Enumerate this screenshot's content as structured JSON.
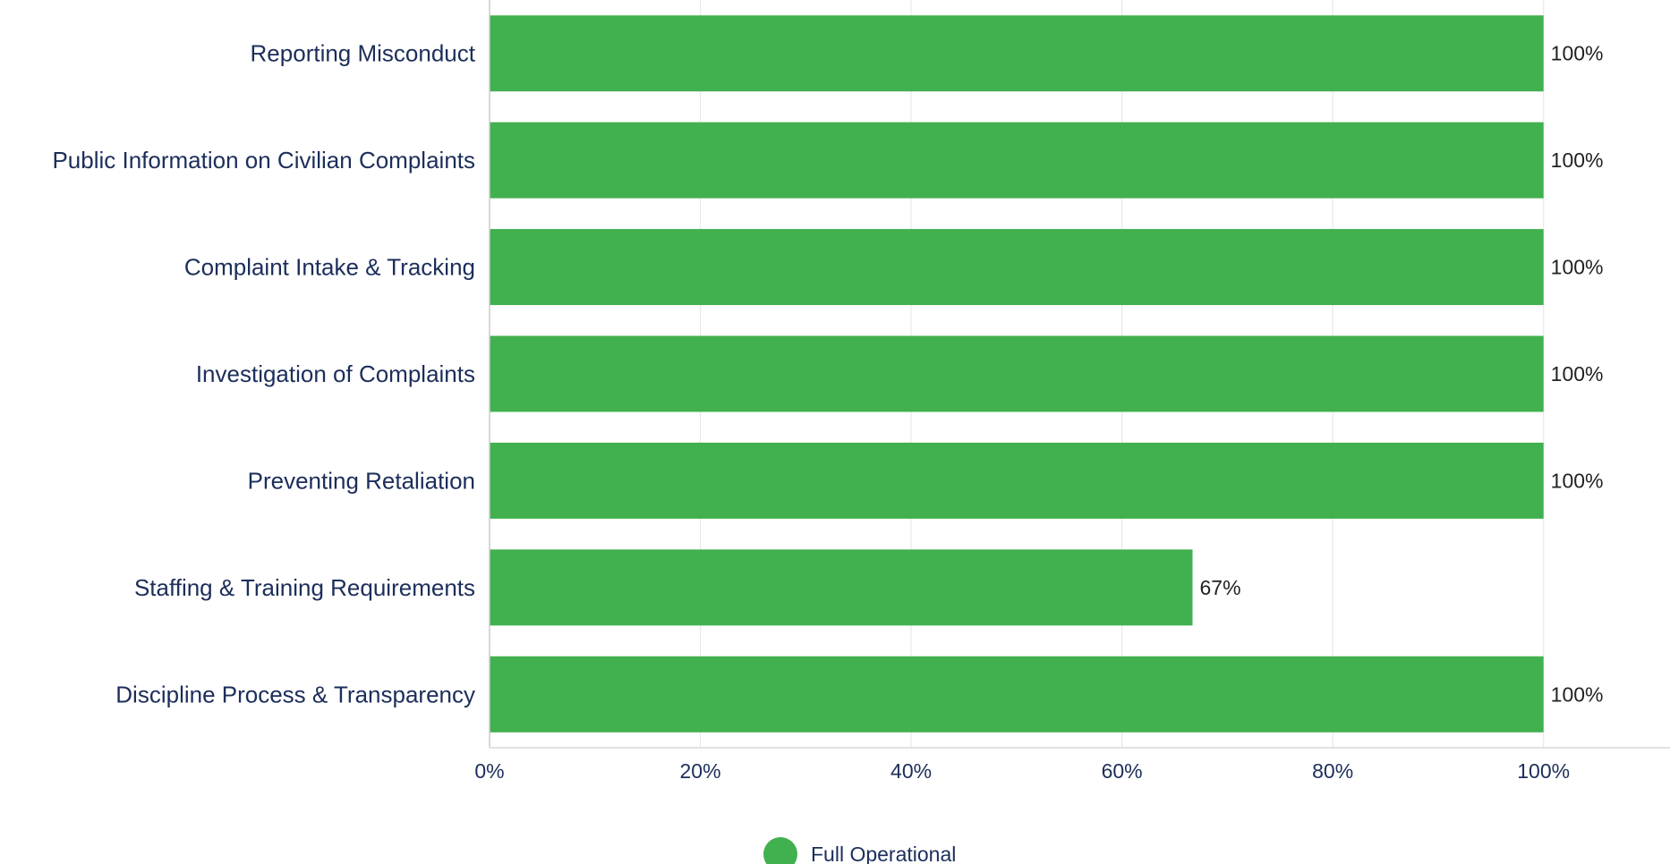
{
  "chart_data": {
    "type": "bar",
    "orientation": "horizontal",
    "categories": [
      "Reporting Misconduct",
      "Public Information on Civilian Complaints",
      "Complaint Intake & Tracking",
      "Investigation of Complaints",
      "Preventing Retaliation",
      "Staffing & Training Requirements",
      "Discipline Process & Transparency"
    ],
    "series": [
      {
        "name": "Full Operational",
        "values": [
          100,
          100,
          100,
          100,
          100,
          66.7,
          100
        ],
        "labels": [
          "100%",
          "100%",
          "100%",
          "100%",
          "100%",
          "67%",
          "100%"
        ],
        "color": "#41b04e"
      }
    ],
    "xlim": [
      0,
      112
    ],
    "x_ticks": [
      0,
      20,
      40,
      60,
      80,
      100
    ],
    "x_tick_labels": [
      "0%",
      "20%",
      "40%",
      "60%",
      "80%",
      "100%"
    ],
    "grid": true,
    "legend": "bottom-center",
    "title": "",
    "xlabel": "",
    "ylabel": ""
  }
}
